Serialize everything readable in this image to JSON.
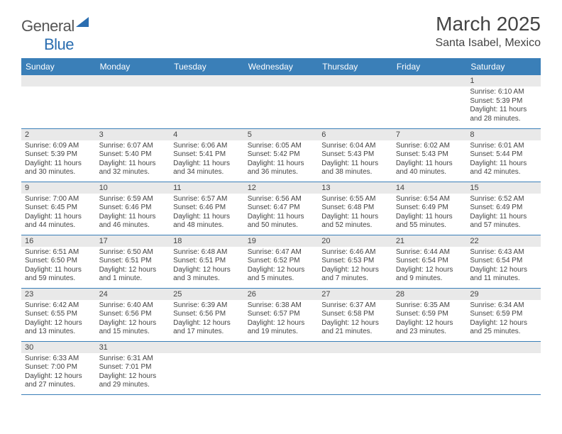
{
  "logo": {
    "text1": "General",
    "text2": "Blue"
  },
  "title": "March 2025",
  "location": "Santa Isabel, Mexico",
  "daynames": [
    "Sunday",
    "Monday",
    "Tuesday",
    "Wednesday",
    "Thursday",
    "Friday",
    "Saturday"
  ],
  "colors": {
    "header_bg": "#3a7fb8",
    "daynum_bg": "#e9e9e9",
    "text": "#444444"
  },
  "weeks": [
    [
      {
        "n": "",
        "sr": "",
        "ss": "",
        "dl": ""
      },
      {
        "n": "",
        "sr": "",
        "ss": "",
        "dl": ""
      },
      {
        "n": "",
        "sr": "",
        "ss": "",
        "dl": ""
      },
      {
        "n": "",
        "sr": "",
        "ss": "",
        "dl": ""
      },
      {
        "n": "",
        "sr": "",
        "ss": "",
        "dl": ""
      },
      {
        "n": "",
        "sr": "",
        "ss": "",
        "dl": ""
      },
      {
        "n": "1",
        "sr": "Sunrise: 6:10 AM",
        "ss": "Sunset: 5:39 PM",
        "dl": "Daylight: 11 hours and 28 minutes."
      }
    ],
    [
      {
        "n": "2",
        "sr": "Sunrise: 6:09 AM",
        "ss": "Sunset: 5:39 PM",
        "dl": "Daylight: 11 hours and 30 minutes."
      },
      {
        "n": "3",
        "sr": "Sunrise: 6:07 AM",
        "ss": "Sunset: 5:40 PM",
        "dl": "Daylight: 11 hours and 32 minutes."
      },
      {
        "n": "4",
        "sr": "Sunrise: 6:06 AM",
        "ss": "Sunset: 5:41 PM",
        "dl": "Daylight: 11 hours and 34 minutes."
      },
      {
        "n": "5",
        "sr": "Sunrise: 6:05 AM",
        "ss": "Sunset: 5:42 PM",
        "dl": "Daylight: 11 hours and 36 minutes."
      },
      {
        "n": "6",
        "sr": "Sunrise: 6:04 AM",
        "ss": "Sunset: 5:43 PM",
        "dl": "Daylight: 11 hours and 38 minutes."
      },
      {
        "n": "7",
        "sr": "Sunrise: 6:02 AM",
        "ss": "Sunset: 5:43 PM",
        "dl": "Daylight: 11 hours and 40 minutes."
      },
      {
        "n": "8",
        "sr": "Sunrise: 6:01 AM",
        "ss": "Sunset: 5:44 PM",
        "dl": "Daylight: 11 hours and 42 minutes."
      }
    ],
    [
      {
        "n": "9",
        "sr": "Sunrise: 7:00 AM",
        "ss": "Sunset: 6:45 PM",
        "dl": "Daylight: 11 hours and 44 minutes."
      },
      {
        "n": "10",
        "sr": "Sunrise: 6:59 AM",
        "ss": "Sunset: 6:46 PM",
        "dl": "Daylight: 11 hours and 46 minutes."
      },
      {
        "n": "11",
        "sr": "Sunrise: 6:57 AM",
        "ss": "Sunset: 6:46 PM",
        "dl": "Daylight: 11 hours and 48 minutes."
      },
      {
        "n": "12",
        "sr": "Sunrise: 6:56 AM",
        "ss": "Sunset: 6:47 PM",
        "dl": "Daylight: 11 hours and 50 minutes."
      },
      {
        "n": "13",
        "sr": "Sunrise: 6:55 AM",
        "ss": "Sunset: 6:48 PM",
        "dl": "Daylight: 11 hours and 52 minutes."
      },
      {
        "n": "14",
        "sr": "Sunrise: 6:54 AM",
        "ss": "Sunset: 6:49 PM",
        "dl": "Daylight: 11 hours and 55 minutes."
      },
      {
        "n": "15",
        "sr": "Sunrise: 6:52 AM",
        "ss": "Sunset: 6:49 PM",
        "dl": "Daylight: 11 hours and 57 minutes."
      }
    ],
    [
      {
        "n": "16",
        "sr": "Sunrise: 6:51 AM",
        "ss": "Sunset: 6:50 PM",
        "dl": "Daylight: 11 hours and 59 minutes."
      },
      {
        "n": "17",
        "sr": "Sunrise: 6:50 AM",
        "ss": "Sunset: 6:51 PM",
        "dl": "Daylight: 12 hours and 1 minute."
      },
      {
        "n": "18",
        "sr": "Sunrise: 6:48 AM",
        "ss": "Sunset: 6:51 PM",
        "dl": "Daylight: 12 hours and 3 minutes."
      },
      {
        "n": "19",
        "sr": "Sunrise: 6:47 AM",
        "ss": "Sunset: 6:52 PM",
        "dl": "Daylight: 12 hours and 5 minutes."
      },
      {
        "n": "20",
        "sr": "Sunrise: 6:46 AM",
        "ss": "Sunset: 6:53 PM",
        "dl": "Daylight: 12 hours and 7 minutes."
      },
      {
        "n": "21",
        "sr": "Sunrise: 6:44 AM",
        "ss": "Sunset: 6:54 PM",
        "dl": "Daylight: 12 hours and 9 minutes."
      },
      {
        "n": "22",
        "sr": "Sunrise: 6:43 AM",
        "ss": "Sunset: 6:54 PM",
        "dl": "Daylight: 12 hours and 11 minutes."
      }
    ],
    [
      {
        "n": "23",
        "sr": "Sunrise: 6:42 AM",
        "ss": "Sunset: 6:55 PM",
        "dl": "Daylight: 12 hours and 13 minutes."
      },
      {
        "n": "24",
        "sr": "Sunrise: 6:40 AM",
        "ss": "Sunset: 6:56 PM",
        "dl": "Daylight: 12 hours and 15 minutes."
      },
      {
        "n": "25",
        "sr": "Sunrise: 6:39 AM",
        "ss": "Sunset: 6:56 PM",
        "dl": "Daylight: 12 hours and 17 minutes."
      },
      {
        "n": "26",
        "sr": "Sunrise: 6:38 AM",
        "ss": "Sunset: 6:57 PM",
        "dl": "Daylight: 12 hours and 19 minutes."
      },
      {
        "n": "27",
        "sr": "Sunrise: 6:37 AM",
        "ss": "Sunset: 6:58 PM",
        "dl": "Daylight: 12 hours and 21 minutes."
      },
      {
        "n": "28",
        "sr": "Sunrise: 6:35 AM",
        "ss": "Sunset: 6:59 PM",
        "dl": "Daylight: 12 hours and 23 minutes."
      },
      {
        "n": "29",
        "sr": "Sunrise: 6:34 AM",
        "ss": "Sunset: 6:59 PM",
        "dl": "Daylight: 12 hours and 25 minutes."
      }
    ],
    [
      {
        "n": "30",
        "sr": "Sunrise: 6:33 AM",
        "ss": "Sunset: 7:00 PM",
        "dl": "Daylight: 12 hours and 27 minutes."
      },
      {
        "n": "31",
        "sr": "Sunrise: 6:31 AM",
        "ss": "Sunset: 7:01 PM",
        "dl": "Daylight: 12 hours and 29 minutes."
      },
      {
        "n": "",
        "sr": "",
        "ss": "",
        "dl": ""
      },
      {
        "n": "",
        "sr": "",
        "ss": "",
        "dl": ""
      },
      {
        "n": "",
        "sr": "",
        "ss": "",
        "dl": ""
      },
      {
        "n": "",
        "sr": "",
        "ss": "",
        "dl": ""
      },
      {
        "n": "",
        "sr": "",
        "ss": "",
        "dl": ""
      }
    ]
  ]
}
